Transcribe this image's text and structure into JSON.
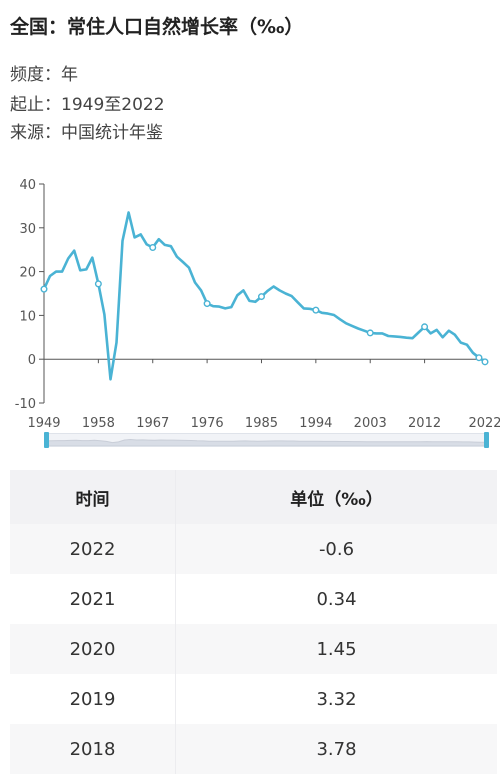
{
  "header": {
    "title": "全国：常住人口自然增长率（‰）",
    "frequency": "频度：年",
    "range": "起止：1949至2022",
    "source": "来源：中国统计年鉴"
  },
  "chart_data": {
    "type": "line",
    "title": "",
    "xlabel": "",
    "ylabel": "",
    "ylim": [
      -10,
      40
    ],
    "yticks": [
      "40",
      "30",
      "20",
      "10",
      "0",
      "-10"
    ],
    "xticks": [
      "1949",
      "1958",
      "1967",
      "1976",
      "1985",
      "1994",
      "2003",
      "2012",
      "2022"
    ],
    "grid": false,
    "color": "#4ab3d4",
    "series": [
      {
        "x": [
          1949,
          1950,
          1951,
          1952,
          1953,
          1954,
          1955,
          1956,
          1957,
          1958,
          1959,
          1960,
          1961,
          1962,
          1963,
          1964,
          1965,
          1966,
          1967,
          1968,
          1969,
          1970,
          1971,
          1972,
          1973,
          1974,
          1975,
          1976,
          1977,
          1978,
          1979,
          1980,
          1981,
          1982,
          1983,
          1984,
          1985,
          1986,
          1987,
          1988,
          1989,
          1990,
          1991,
          1992,
          1993,
          1994,
          1995,
          1996,
          1997,
          1998,
          1999,
          2000,
          2001,
          2002,
          2003,
          2004,
          2005,
          2006,
          2007,
          2008,
          2009,
          2010,
          2011,
          2012,
          2013,
          2014,
          2015,
          2016,
          2017,
          2018,
          2019,
          2020,
          2021,
          2022
        ],
        "y": [
          16.0,
          19.0,
          20.0,
          20.0,
          23.0,
          24.8,
          20.3,
          20.5,
          23.2,
          17.2,
          10.2,
          -4.6,
          3.8,
          27.0,
          33.5,
          27.8,
          28.5,
          26.2,
          25.5,
          27.4,
          26.1,
          25.8,
          23.4,
          22.2,
          20.9,
          17.5,
          15.7,
          12.7,
          12.1,
          12.0,
          11.6,
          11.9,
          14.6,
          15.7,
          13.3,
          13.1,
          14.3,
          15.6,
          16.6,
          15.7,
          15.0,
          14.4,
          13.0,
          11.6,
          11.5,
          11.2,
          10.6,
          10.4,
          10.1,
          9.1,
          8.2,
          7.6,
          7.0,
          6.5,
          6.0,
          5.9,
          5.9,
          5.3,
          5.2,
          5.1,
          4.9,
          4.8,
          6.1,
          7.4,
          5.9,
          6.7,
          5.0,
          6.5,
          5.6,
          3.78,
          3.32,
          1.45,
          0.34,
          -0.6
        ]
      }
    ],
    "markers_at": [
      1949,
      1958,
      1967,
      1976,
      1985,
      1994,
      2003,
      2012,
      2021,
      2022
    ]
  },
  "table": {
    "headers": [
      "时间",
      "单位（‰）"
    ],
    "rows": [
      [
        "2022",
        "-0.6"
      ],
      [
        "2021",
        "0.34"
      ],
      [
        "2020",
        "1.45"
      ],
      [
        "2019",
        "3.32"
      ],
      [
        "2018",
        "3.78"
      ]
    ]
  }
}
